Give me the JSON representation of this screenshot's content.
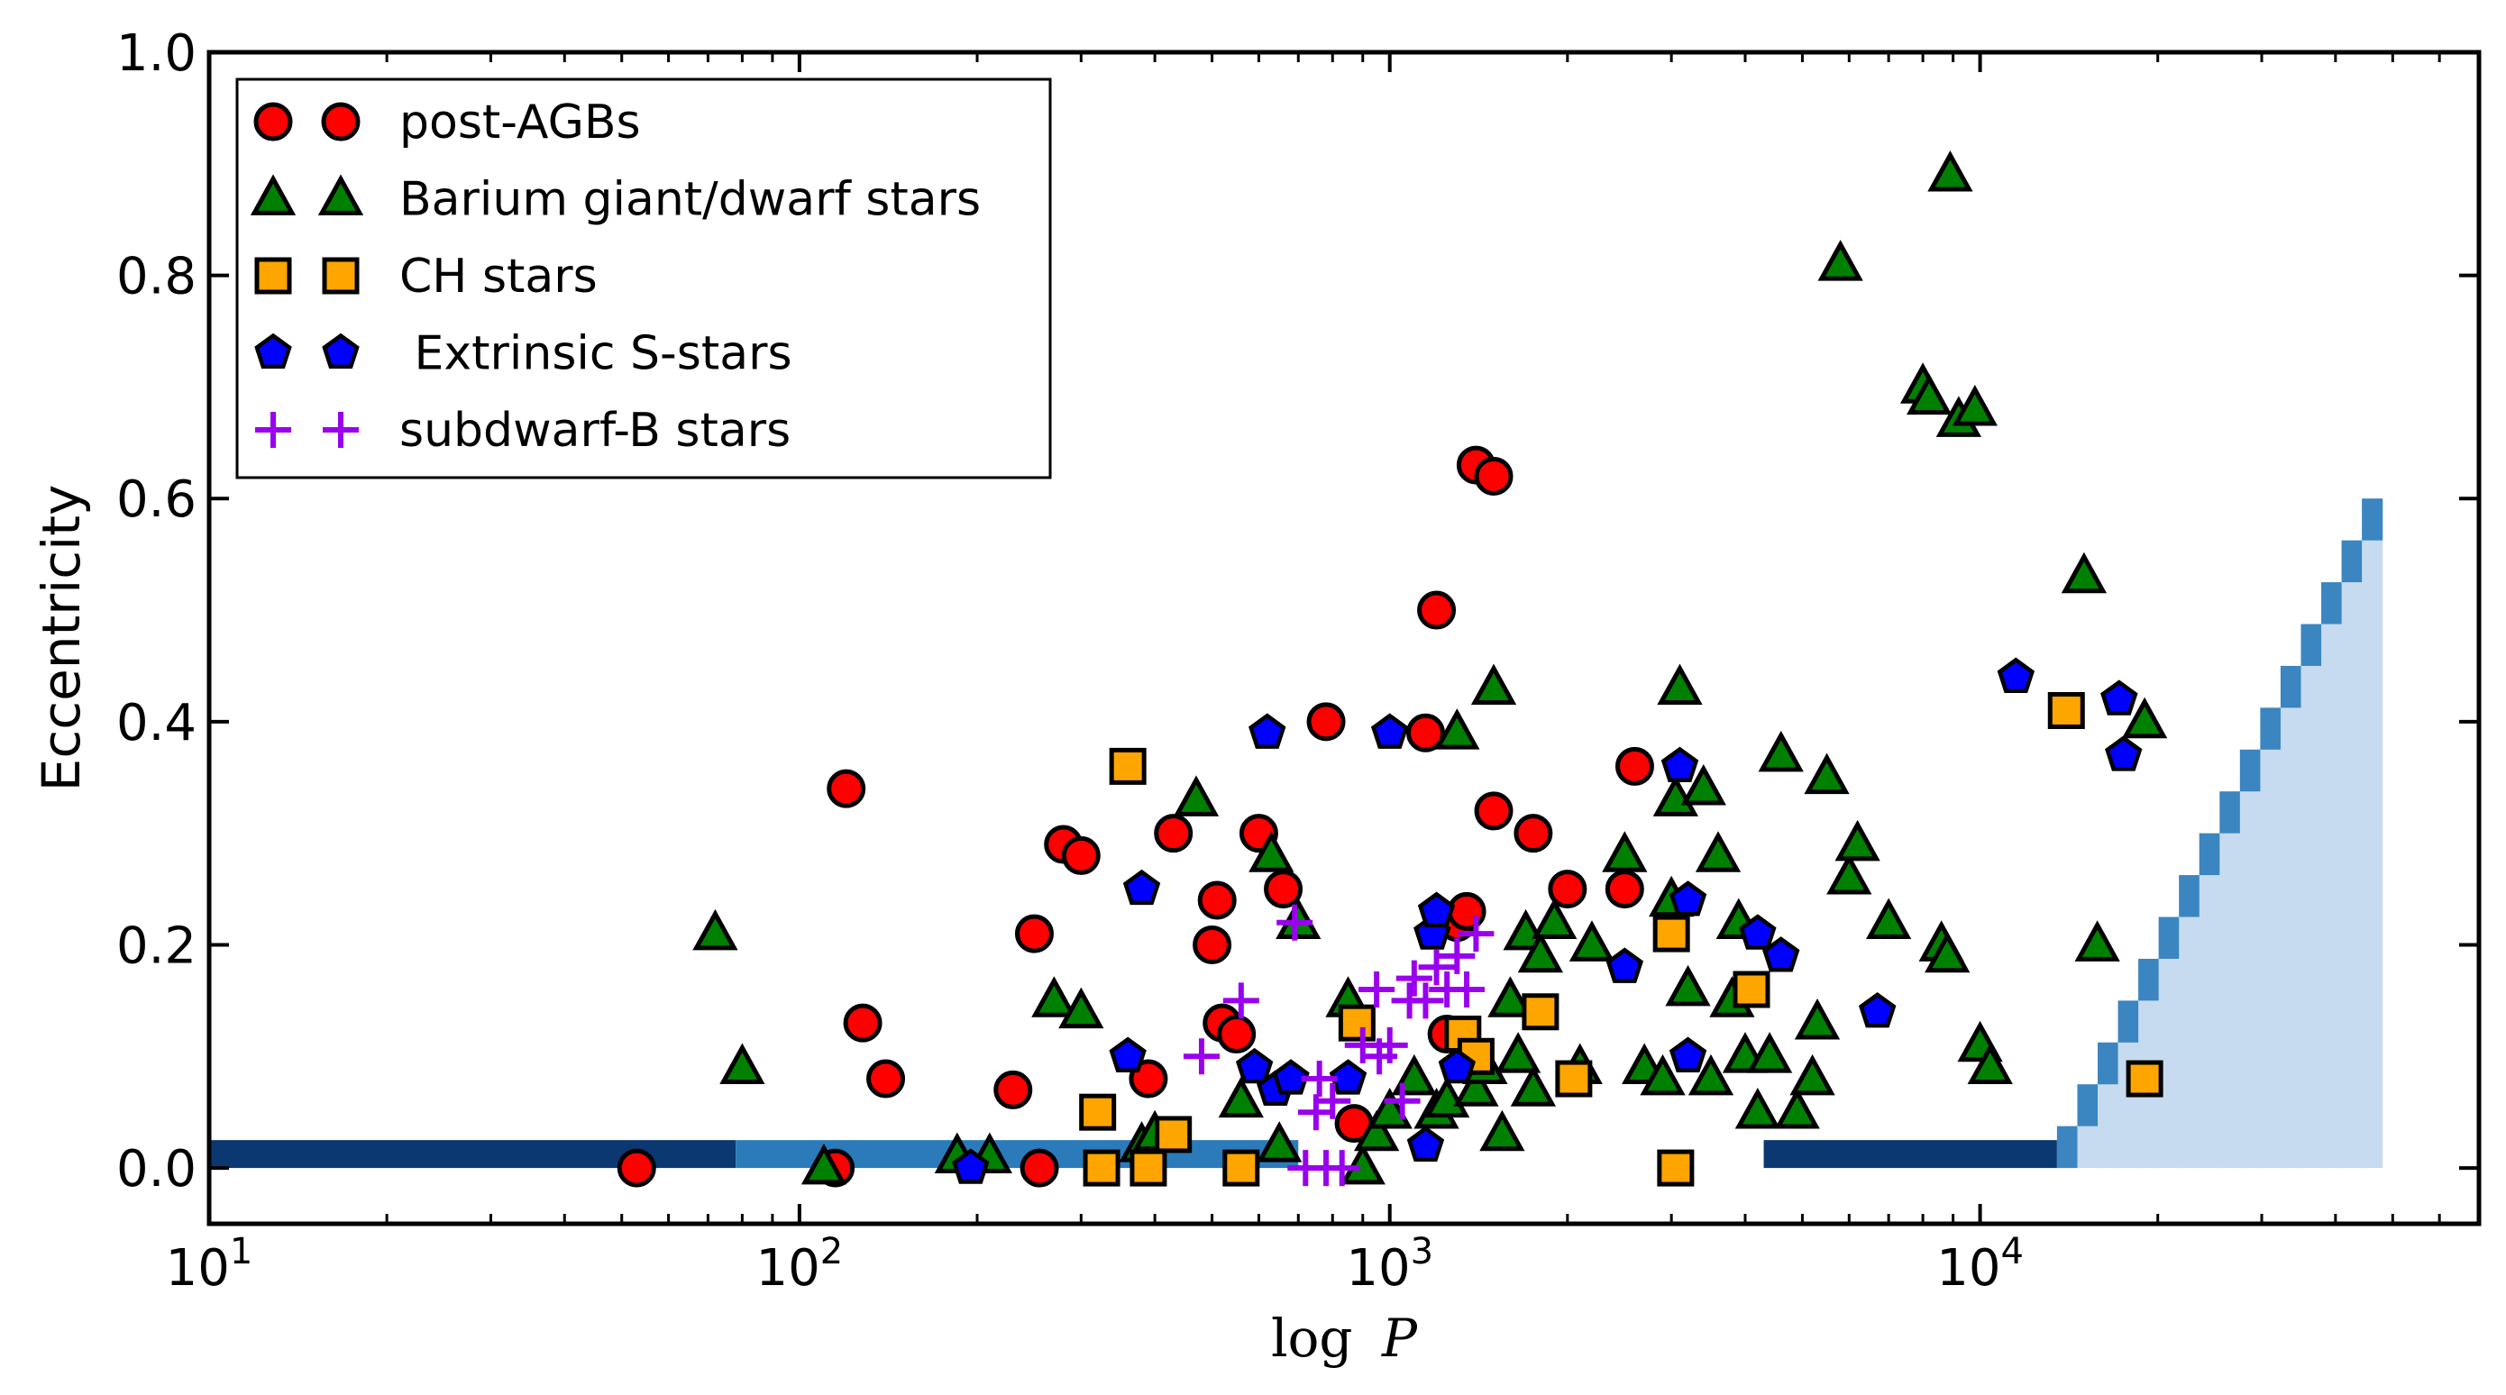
{
  "chart_data": {
    "type": "scatter",
    "xscale": "log",
    "xlabel_log": "log",
    "xlabel_var": "P",
    "ylabel": "Eccentricity",
    "xlim": [
      10,
      70000
    ],
    "ylim": [
      -0.05,
      1.0
    ],
    "xticks": [
      {
        "value": 10,
        "base": "10",
        "exp": "1"
      },
      {
        "value": 100,
        "base": "10",
        "exp": "2"
      },
      {
        "value": 1000,
        "base": "10",
        "exp": "3"
      },
      {
        "value": 10000,
        "base": "10",
        "exp": "4"
      }
    ],
    "yticks": [
      "0.0",
      "0.2",
      "0.4",
      "0.6",
      "0.8",
      "1.0"
    ],
    "legend_location": "upper-left",
    "series": [
      {
        "name": "post-AGBs",
        "marker": "circle",
        "color": "#ff0000",
        "points": [
          [
            53,
            0.0
          ],
          [
            115,
            0.0
          ],
          [
            120,
            0.34
          ],
          [
            128,
            0.13
          ],
          [
            140,
            0.08
          ],
          [
            230,
            0.07
          ],
          [
            250,
            0.21
          ],
          [
            255,
            0.0
          ],
          [
            280,
            0.29
          ],
          [
            300,
            0.28
          ],
          [
            390,
            0.08
          ],
          [
            430,
            0.3
          ],
          [
            500,
            0.2
          ],
          [
            510,
            0.24
          ],
          [
            520,
            0.13
          ],
          [
            550,
            0.12
          ],
          [
            600,
            0.3
          ],
          [
            660,
            0.25
          ],
          [
            780,
            0.4
          ],
          [
            870,
            0.04
          ],
          [
            1150,
            0.39
          ],
          [
            1200,
            0.5
          ],
          [
            1250,
            0.12
          ],
          [
            1300,
            0.22
          ],
          [
            1350,
            0.23
          ],
          [
            1400,
            0.63
          ],
          [
            1500,
            0.62
          ],
          [
            1500,
            0.32
          ],
          [
            1750,
            0.3
          ],
          [
            2000,
            0.25
          ],
          [
            2500,
            0.25
          ],
          [
            2600,
            0.36
          ]
        ]
      },
      {
        "name": "Barium giant/dwarf stars",
        "marker": "triangle",
        "color": "#008000",
        "points": [
          [
            72,
            0.21
          ],
          [
            80,
            0.09
          ],
          [
            110,
            0.0
          ],
          [
            185,
            0.01
          ],
          [
            210,
            0.01
          ],
          [
            270,
            0.15
          ],
          [
            300,
            0.14
          ],
          [
            380,
            0.02
          ],
          [
            400,
            0.03
          ],
          [
            470,
            0.33
          ],
          [
            560,
            0.06
          ],
          [
            630,
            0.28
          ],
          [
            650,
            0.02
          ],
          [
            700,
            0.22
          ],
          [
            850,
            0.15
          ],
          [
            900,
            0.0
          ],
          [
            950,
            0.03
          ],
          [
            1000,
            0.05
          ],
          [
            1100,
            0.08
          ],
          [
            1200,
            0.05
          ],
          [
            1250,
            0.06
          ],
          [
            1300,
            0.39
          ],
          [
            1400,
            0.07
          ],
          [
            1450,
            0.09
          ],
          [
            1500,
            0.43
          ],
          [
            1550,
            0.03
          ],
          [
            1600,
            0.15
          ],
          [
            1650,
            0.1
          ],
          [
            1700,
            0.21
          ],
          [
            1750,
            0.07
          ],
          [
            1800,
            0.19
          ],
          [
            1900,
            0.22
          ],
          [
            2100,
            0.09
          ],
          [
            2200,
            0.2
          ],
          [
            2500,
            0.28
          ],
          [
            2700,
            0.09
          ],
          [
            2900,
            0.08
          ],
          [
            3000,
            0.24
          ],
          [
            3050,
            0.33
          ],
          [
            3100,
            0.43
          ],
          [
            3200,
            0.16
          ],
          [
            3400,
            0.34
          ],
          [
            3500,
            0.08
          ],
          [
            3600,
            0.28
          ],
          [
            3800,
            0.15
          ],
          [
            3900,
            0.22
          ],
          [
            4000,
            0.1
          ],
          [
            4200,
            0.05
          ],
          [
            4400,
            0.1
          ],
          [
            4600,
            0.37
          ],
          [
            4900,
            0.05
          ],
          [
            5200,
            0.08
          ],
          [
            5300,
            0.13
          ],
          [
            5500,
            0.35
          ],
          [
            5800,
            0.81
          ],
          [
            6000,
            0.26
          ],
          [
            6200,
            0.29
          ],
          [
            7000,
            0.22
          ],
          [
            8000,
            0.7
          ],
          [
            8200,
            0.69
          ],
          [
            8600,
            0.2
          ],
          [
            8800,
            0.19
          ],
          [
            8900,
            0.89
          ],
          [
            9200,
            0.67
          ],
          [
            9800,
            0.68
          ],
          [
            10000,
            0.11
          ],
          [
            10400,
            0.09
          ],
          [
            15000,
            0.53
          ],
          [
            15800,
            0.2
          ],
          [
            19000,
            0.4
          ]
        ]
      },
      {
        "name": "CH stars",
        "marker": "square",
        "color": "#ffa500",
        "points": [
          [
            320,
            0.05
          ],
          [
            325,
            0.0
          ],
          [
            360,
            0.36
          ],
          [
            390,
            0.0
          ],
          [
            430,
            0.03
          ],
          [
            560,
            0.0
          ],
          [
            880,
            0.13
          ],
          [
            1330,
            0.12
          ],
          [
            1400,
            0.1
          ],
          [
            1800,
            0.14
          ],
          [
            2050,
            0.08
          ],
          [
            3000,
            0.21
          ],
          [
            3050,
            0.0
          ],
          [
            4100,
            0.16
          ],
          [
            14000,
            0.41
          ],
          [
            19000,
            0.08
          ]
        ]
      },
      {
        "name": " Extrinsic S-stars",
        "marker": "pentagon",
        "color": "#0000ff",
        "points": [
          [
            195,
            0.0
          ],
          [
            360,
            0.1
          ],
          [
            380,
            0.25
          ],
          [
            590,
            0.09
          ],
          [
            620,
            0.39
          ],
          [
            640,
            0.07
          ],
          [
            680,
            0.08
          ],
          [
            850,
            0.08
          ],
          [
            1000,
            0.39
          ],
          [
            1150,
            0.02
          ],
          [
            1180,
            0.21
          ],
          [
            1200,
            0.23
          ],
          [
            1300,
            0.09
          ],
          [
            2500,
            0.18
          ],
          [
            3100,
            0.36
          ],
          [
            3200,
            0.1
          ],
          [
            3200,
            0.24
          ],
          [
            4200,
            0.21
          ],
          [
            4600,
            0.19
          ],
          [
            6700,
            0.14
          ],
          [
            11500,
            0.44
          ],
          [
            17200,
            0.42
          ],
          [
            17500,
            0.37
          ]
        ]
      },
      {
        "name": "subdwarf-B stars",
        "marker": "plus",
        "color": "#9900ee",
        "points": [
          [
            480,
            0.1
          ],
          [
            560,
            0.15
          ],
          [
            690,
            0.22
          ],
          [
            720,
            0.0
          ],
          [
            750,
            0.05
          ],
          [
            760,
            0.08
          ],
          [
            780,
            0.0
          ],
          [
            800,
            0.06
          ],
          [
            830,
            0.0
          ],
          [
            900,
            0.11
          ],
          [
            950,
            0.16
          ],
          [
            960,
            0.1
          ],
          [
            1000,
            0.11
          ],
          [
            1050,
            0.06
          ],
          [
            1080,
            0.15
          ],
          [
            1100,
            0.17
          ],
          [
            1150,
            0.15
          ],
          [
            1200,
            0.18
          ],
          [
            1250,
            0.16
          ],
          [
            1300,
            0.19
          ],
          [
            1350,
            0.16
          ],
          [
            1400,
            0.21
          ]
        ]
      }
    ],
    "shaded_region": {
      "description": "detection limit bands (blue)",
      "bands": [
        {
          "x0": 10,
          "x1": 78,
          "e0": 0.0,
          "e1": 0.025,
          "color": "#0b3870"
        },
        {
          "x0": 78,
          "x1": 700,
          "e0": 0.0,
          "e1": 0.025,
          "color": "#2b7bba"
        },
        {
          "x0": 4300,
          "x1": 13500,
          "e0": 0.0,
          "e1": 0.025,
          "color": "#0b3870"
        }
      ],
      "wedge": {
        "x0": 13500,
        "x1": 48000,
        "e_top_max": 0.6,
        "color_edge": "#2b7bba",
        "color_fill": "#c6dbef"
      }
    }
  }
}
